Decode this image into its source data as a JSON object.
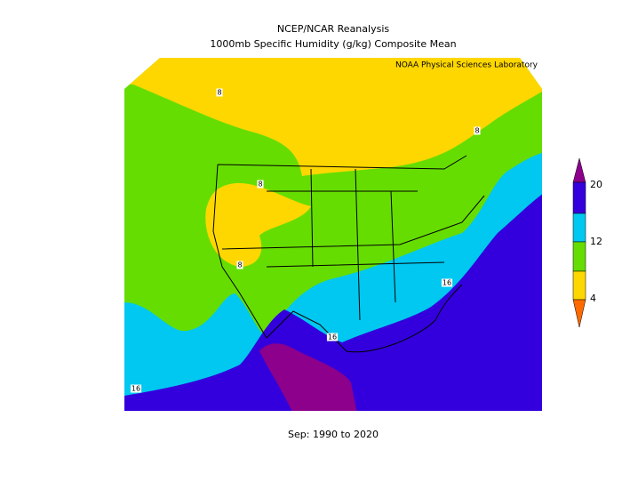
{
  "title": [
    "NCEP/NCAR Reanalysis",
    "1000mb Specific Humidity (g/kg) Composite Mean"
  ],
  "credit": "NOAA Physical Sciences Laboratory",
  "footer": "Sep: 1990 to 2020",
  "colorbar": {
    "labels": [
      20,
      12,
      4
    ]
  },
  "contour_labels": [
    8,
    8,
    8,
    8,
    16,
    16,
    16
  ]
}
